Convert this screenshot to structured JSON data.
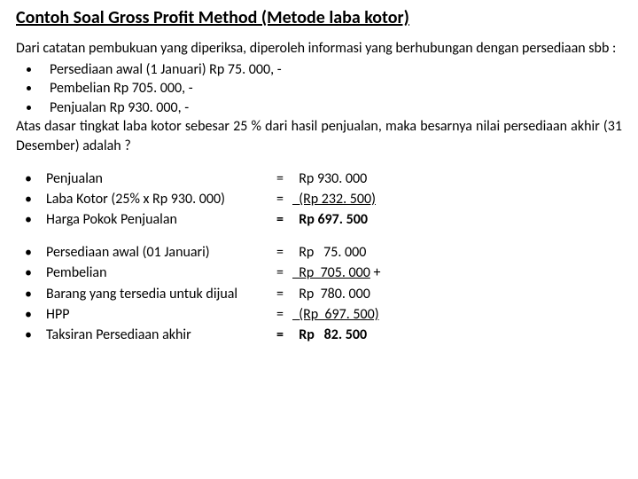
{
  "title": "Contoh Soal Gross Profit Method (Metode laba kotor)",
  "intro": {
    "line1": "Dari catatan pembukuan yang diperiksa, diperoleh informasi yang berhubungan dengan persediaan sbb :",
    "bullets": [
      "Persediaan awal (1 Januari) Rp 75. 000, -",
      "Pembelian Rp 705. 000, -",
      "Penjualan Rp 930. 000, -"
    ],
    "line2": "Atas dasar tingkat laba kotor sebesar 25 % dari hasil penjualan, maka besarnya nilai persediaan akhir (31 Desember) adalah ?"
  },
  "group1": [
    {
      "label": "Penjualan",
      "eq": "=",
      "val": "  Rp 930. 000",
      "u": false,
      "b": false,
      "suffix": ""
    },
    {
      "label": "Laba Kotor (25% x Rp 930. 000)",
      "eq": "=",
      "val": "  (Rp 232. 500)",
      "u": true,
      "b": false,
      "suffix": ""
    },
    {
      "label": "Harga Pokok Penjualan",
      "eq": "=",
      "val": "  Rp 697. 500",
      "u": false,
      "b": true,
      "suffix": ""
    }
  ],
  "group2": [
    {
      "label": "Persediaan awal (01 Januari)",
      "eq": "=",
      "val": "  Rp   75. 000",
      "u": false,
      "b": false,
      "suffix": ""
    },
    {
      "label": "Pembelian",
      "eq": "=",
      "val": "  Rp  705. 000",
      "u": true,
      "b": false,
      "suffix": " +"
    },
    {
      "label": "Barang yang tersedia untuk dijual",
      "eq": "=",
      "val": "  Rp  780. 000",
      "u": false,
      "b": false,
      "suffix": ""
    },
    {
      "label": "HPP",
      "eq": "=",
      "val": "  (Rp  697. 500)",
      "u": true,
      "b": false,
      "suffix": ""
    },
    {
      "label": "Taksiran Persediaan akhir",
      "eq": "=",
      "val": "  Rp   82. 500",
      "u": false,
      "b": true,
      "suffix": ""
    }
  ],
  "style": {
    "text_color": "#000000",
    "background": "#ffffff",
    "title_fontsize_pt": 15,
    "body_fontsize_pt": 12
  }
}
